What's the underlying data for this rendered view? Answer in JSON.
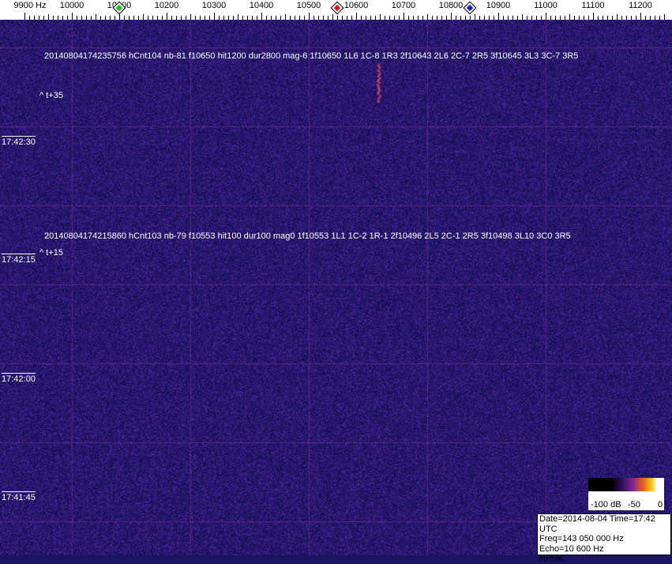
{
  "axis": {
    "unit_label": "9900 Hz",
    "ticks": [
      "10000",
      "10100",
      "10200",
      "10300",
      "10400",
      "10500",
      "10600",
      "10700",
      "10800",
      "10900",
      "11000",
      "11100",
      "11200"
    ],
    "start_hz": 9900
  },
  "markers": [
    {
      "name": "green-marker",
      "hz": 10100,
      "color": "#20c020"
    },
    {
      "name": "red-marker",
      "hz": 10560,
      "color": "#d02020"
    },
    {
      "name": "blue-marker",
      "hz": 10840,
      "color": "#2020c0"
    }
  ],
  "annotations": [
    {
      "text": "20140804174235756 hCnt104 nb-81 f10650 hit1200 dur2800 mag-6 1f10650 1L6 1C-8 1R3 2f10643 2L6 2C-7 2R5 3f10645 3L3 3C-7 3R5",
      "offset": "^ t+35"
    },
    {
      "text": "20140804174215860 hCnt103 nb-79 f10553 hit100 dur100 mag0 1f10553 1L1 1C-2 1R-1 2f10496 2L5 2C-1 2R5 3f10498 3L10 3C0 3R5",
      "offset": "^ t+15"
    }
  ],
  "times": [
    "17:42:30",
    "17:42:15",
    "17:42:00",
    "17:41:45"
  ],
  "legend": {
    "labels": [
      "-100 dB",
      "-50",
      "0"
    ]
  },
  "info": {
    "line1": "Date=2014-08-04 Time=17:42 UTC",
    "line2": "Freq=143 050 000 Hz",
    "line3": "Echo=10 600 Hz",
    "line4": "HPHK"
  },
  "colors": {
    "background": "#1a1460",
    "grid": "#6a2a8a"
  }
}
